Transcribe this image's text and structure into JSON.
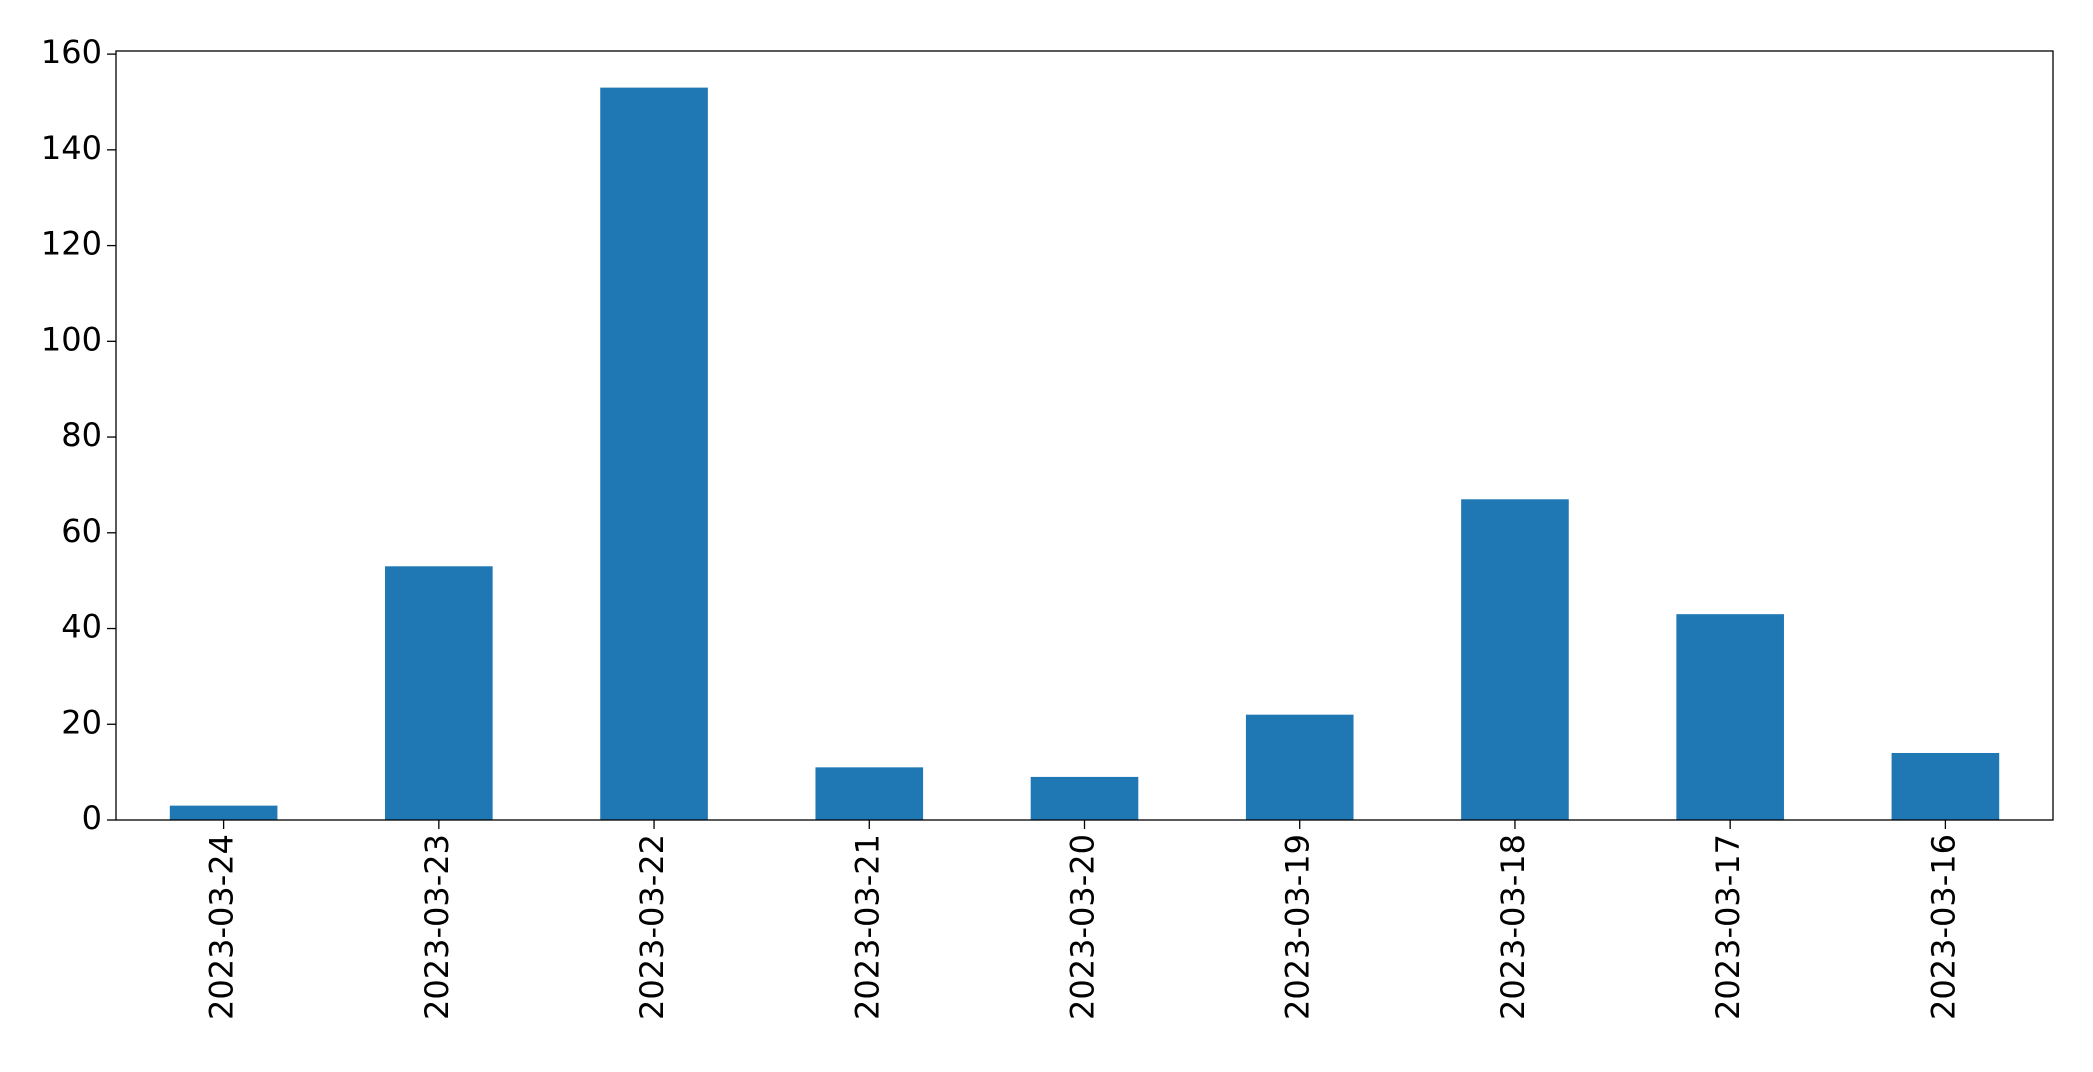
{
  "chart_data": {
    "type": "bar",
    "categories": [
      "2023-03-24",
      "2023-03-23",
      "2023-03-22",
      "2023-03-21",
      "2023-03-20",
      "2023-03-19",
      "2023-03-18",
      "2023-03-17",
      "2023-03-16"
    ],
    "values": [
      3,
      53,
      153,
      11,
      9,
      22,
      67,
      43,
      14
    ],
    "color": "#1f77b4",
    "ylim": [
      0,
      160.65
    ],
    "yticks": [
      0,
      20,
      40,
      60,
      80,
      100,
      120,
      140,
      160
    ],
    "grid": false
  }
}
